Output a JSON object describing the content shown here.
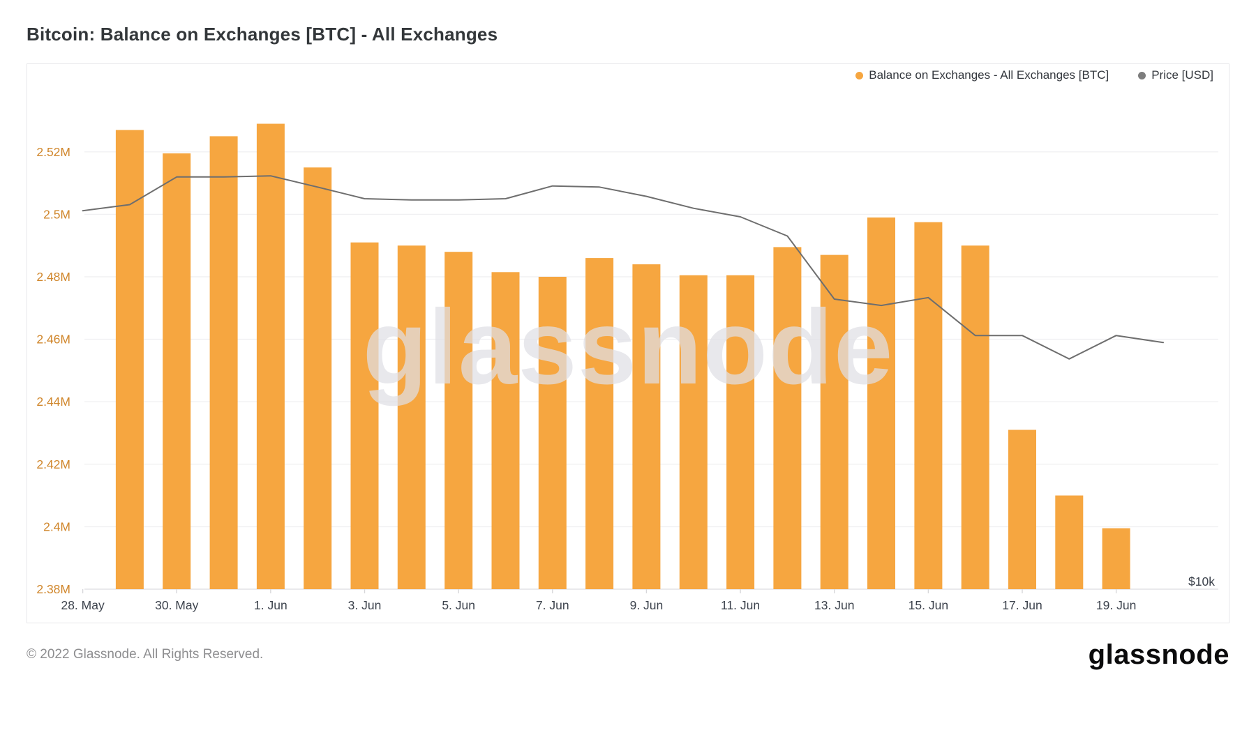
{
  "title": "Bitcoin: Balance on Exchanges [BTC] - All Exchanges",
  "legend": {
    "balance_label": "Balance on Exchanges - All Exchanges [BTC]",
    "price_label": "Price [USD]"
  },
  "watermark": "glassnode",
  "footer": {
    "copyright": "© 2022 Glassnode. All Rights Reserved.",
    "logo_text": "glassnode"
  },
  "colors": {
    "bar": "#f6a640",
    "price_line": "#6e6e6e",
    "legend_price_dot": "#7d7d7d",
    "y_axis_labels": "#d0862b",
    "x_axis_labels": "#3d434d",
    "right_axis_label": "#3d434d",
    "grid": "#f0f0f2",
    "axis_line": "#e2e2e5",
    "tick_mark": "#d7d7da"
  },
  "chart_data": {
    "type": "bar",
    "subtype": "bar + line combo, dual axis",
    "title": "Bitcoin: Balance on Exchanges [BTC] - All Exchanges",
    "grid": "horizontal only",
    "legend_position": "top-right",
    "series": [
      {
        "name": "Balance on Exchanges - All Exchanges [BTC]",
        "type": "bar",
        "axis": "left",
        "unit": "million BTC",
        "dates": [
          "29. May",
          "30. May",
          "31. May",
          "1. Jun",
          "2. Jun",
          "3. Jun",
          "4. Jun",
          "5. Jun",
          "6. Jun",
          "7. Jun",
          "8. Jun",
          "9. Jun",
          "10. Jun",
          "11. Jun",
          "12. Jun",
          "13. Jun",
          "14. Jun",
          "15. Jun",
          "16. Jun",
          "17. Jun",
          "18. Jun",
          "19. Jun"
        ],
        "values": [
          2.527,
          2.5195,
          2.525,
          2.529,
          2.515,
          2.491,
          2.49,
          2.488,
          2.4815,
          2.48,
          2.486,
          2.484,
          2.4805,
          2.4805,
          2.4895,
          2.487,
          2.499,
          2.4975,
          2.49,
          2.431,
          2.41,
          2.3995
        ]
      },
      {
        "name": "Price [USD]",
        "type": "line",
        "axis": "right",
        "unit": "thousand USD",
        "dates": [
          "28. May",
          "29. May",
          "30. May",
          "31. May",
          "1. Jun",
          "2. Jun",
          "3. Jun",
          "4. Jun",
          "5. Jun",
          "6. Jun",
          "7. Jun",
          "8. Jun",
          "9. Jun",
          "10. Jun",
          "11. Jun",
          "12. Jun",
          "13. Jun",
          "14. Jun",
          "15. Jun",
          "16. Jun",
          "17. Jun",
          "18. Jun",
          "19. Jun",
          "20. Jun"
        ],
        "values": [
          28.8,
          29.3,
          31.7,
          31.7,
          31.8,
          30.8,
          29.8,
          29.7,
          29.7,
          29.8,
          30.9,
          30.8,
          30.0,
          29.0,
          28.3,
          26.8,
          22.4,
          22.0,
          22.5,
          20.2,
          20.2,
          18.9,
          20.2,
          19.8
        ]
      }
    ],
    "left_axis": {
      "min": 2.38,
      "max": 2.5425,
      "ticks": [
        {
          "label": "2.52M",
          "value": 2.52
        },
        {
          "label": "2.5M",
          "value": 2.5
        },
        {
          "label": "2.48M",
          "value": 2.48
        },
        {
          "label": "2.46M",
          "value": 2.46
        },
        {
          "label": "2.44M",
          "value": 2.44
        },
        {
          "label": "2.42M",
          "value": 2.42
        },
        {
          "label": "2.4M",
          "value": 2.4
        },
        {
          "label": "2.38M",
          "value": 2.38
        }
      ]
    },
    "right_axis": {
      "scale": "log",
      "visible_tick_label": "$10k",
      "visible_tick_value": 10
    },
    "x_axis": {
      "tick_labels": [
        "28. May",
        "30. May",
        "1. Jun",
        "3. Jun",
        "5. Jun",
        "7. Jun",
        "9. Jun",
        "11. Jun",
        "13. Jun",
        "15. Jun",
        "17. Jun",
        "19. Jun"
      ]
    }
  }
}
